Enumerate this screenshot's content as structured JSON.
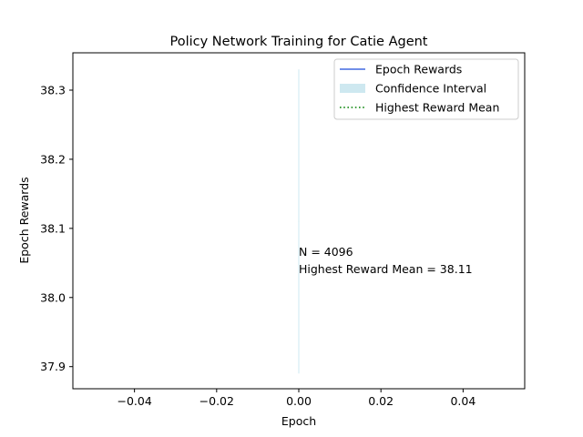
{
  "chart_data": {
    "type": "line",
    "title": "Policy Network Training for Catie Agent",
    "xlabel": "Epoch",
    "ylabel": "Epoch Rewards",
    "xlim": [
      -0.055,
      0.055
    ],
    "ylim": [
      37.868,
      38.354
    ],
    "x_ticks": [
      -0.04,
      -0.02,
      0.0,
      0.02,
      0.04
    ],
    "x_tick_labels": [
      "−0.04",
      "−0.02",
      "0.00",
      "0.02",
      "0.04"
    ],
    "y_ticks": [
      37.9,
      38.0,
      38.1,
      38.2,
      38.3
    ],
    "y_tick_labels": [
      "37.9",
      "38.0",
      "38.1",
      "38.2",
      "38.3"
    ],
    "grid": false,
    "legend_position": "top-right",
    "series": [
      {
        "name": "Epoch Rewards",
        "kind": "line",
        "color": "#4169e1",
        "x": [
          0
        ],
        "y": [
          38.11
        ]
      },
      {
        "name": "Confidence Interval",
        "kind": "band",
        "color": "#add8e6",
        "x": [
          0
        ],
        "lower": [
          37.89
        ],
        "upper": [
          38.33
        ]
      },
      {
        "name": "Highest Reward Mean",
        "kind": "hline-dotted",
        "color": "#008000",
        "x": [
          0
        ],
        "y": [
          38.11
        ]
      }
    ],
    "annotations": [
      {
        "text": "N = 4096",
        "x": 0.0,
        "y": 38.06
      },
      {
        "text": "Highest Reward Mean = 38.11",
        "x": 0.0,
        "y": 38.035
      }
    ]
  }
}
